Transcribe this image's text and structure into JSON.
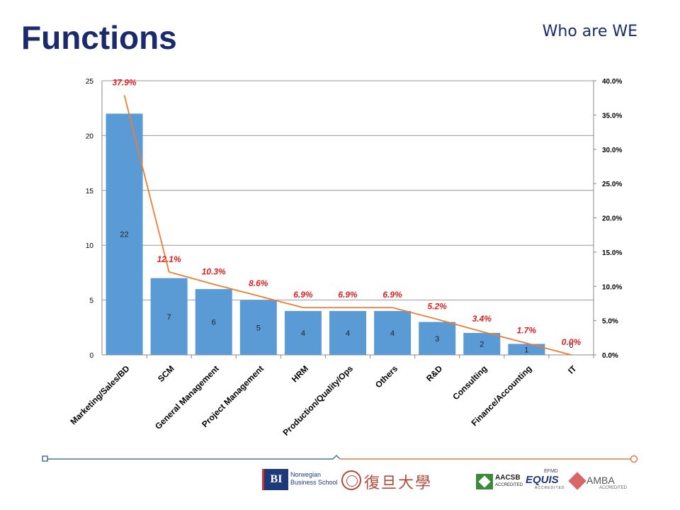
{
  "slide": {
    "title": "Functions",
    "subtitle": "Who are WE"
  },
  "logos": {
    "bi_mark": "BI",
    "bi_name": "Norwegian Business School",
    "fudan_name": "復旦大學",
    "aacsb": "AACSB",
    "aacsb_sub": "ACCREDITED",
    "efmd": "EFMD",
    "equis": "EQUIS",
    "equis_sub": "ACCREDITED",
    "amba": "AMBA",
    "amba_sub": "ACCREDITED"
  },
  "colors": {
    "title": "#1b2a6b",
    "bar": "#5b9bd5",
    "line": "#ed7d31",
    "pct_label": "#e02020",
    "footer_left": "#4a6fa5",
    "footer_right": "#e07a50"
  },
  "chart_data": {
    "type": "bar",
    "categories": [
      "Marketing/Sales/BD",
      "SCM",
      "General Management",
      "Project Management",
      "HRM",
      "Production/Quality/Ops",
      "Others",
      "R&D",
      "Consulting",
      "Finance/Accounting",
      "IT"
    ],
    "values": [
      22,
      7,
      6,
      5,
      4,
      4,
      4,
      3,
      2,
      1,
      0
    ],
    "value_labels": [
      "22",
      "7",
      "6",
      "5",
      "4",
      "4",
      "4",
      "3",
      "2",
      "1",
      "0"
    ],
    "line_values": [
      37.9,
      12.1,
      10.3,
      8.6,
      6.9,
      6.9,
      6.9,
      5.2,
      3.4,
      1.7,
      0.0
    ],
    "line_labels": [
      "37.9%",
      "12.1%",
      "10.3%",
      "8.6%",
      "6.9%",
      "6.9%",
      "6.9%",
      "5.2%",
      "3.4%",
      "1.7%",
      "0.0%"
    ],
    "ylim": [
      0,
      25
    ],
    "y_ticks": [
      "0",
      "5",
      "10",
      "15",
      "20",
      "25"
    ],
    "y2lim": [
      0,
      40
    ],
    "y2_ticks": [
      "0.0%",
      "5.0%",
      "10.0%",
      "15.0%",
      "20.0%",
      "25.0%",
      "30.0%",
      "35.0%",
      "40.0%"
    ],
    "grid": true
  }
}
